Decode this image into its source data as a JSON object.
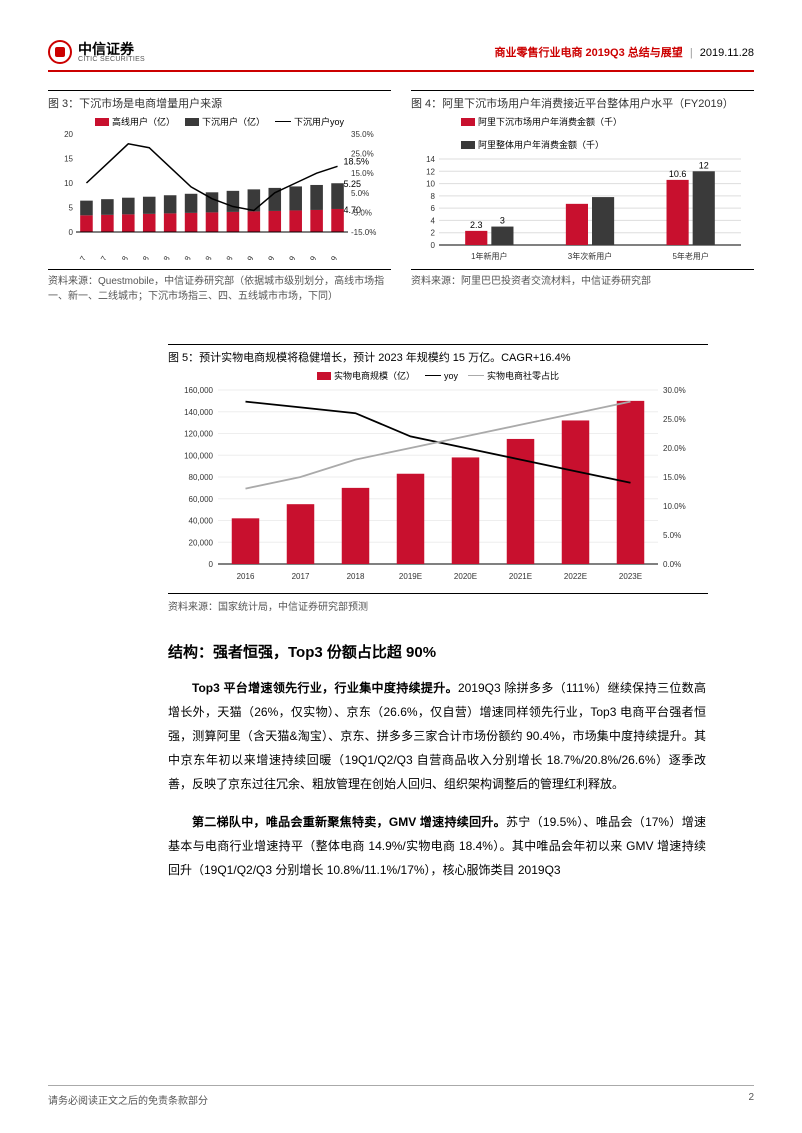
{
  "header": {
    "logo_cn": "中信证券",
    "logo_en": "CITIC SECURITIES",
    "title_red": "商业零售行业电商 2019Q3 总结与展望",
    "date": "2019.11.28"
  },
  "chart3": {
    "title": "图 3：下沉市场是电商增量用户来源",
    "type": "stacked-bar-line",
    "legend": {
      "series_a": "高线用户（亿）",
      "series_b": "下沉用户（亿）",
      "line": "下沉用户yoy"
    },
    "x_labels": [
      "Sep-17",
      "Nov-17",
      "Jan-18",
      "Mar-18",
      "May-18",
      "Jul-18",
      "Sep-18",
      "Nov-18",
      "Jan-19",
      "Mar-19",
      "May-19",
      "Jul-19",
      "Sep-19"
    ],
    "high_tier": [
      3.4,
      3.5,
      3.6,
      3.7,
      3.8,
      3.9,
      4.0,
      4.1,
      4.2,
      4.3,
      4.4,
      4.5,
      4.7
    ],
    "sink_tier": [
      3.0,
      3.2,
      3.4,
      3.5,
      3.7,
      3.9,
      4.1,
      4.3,
      4.5,
      4.7,
      4.9,
      5.1,
      5.25
    ],
    "yoy_pct": [
      10,
      20,
      30,
      28,
      18,
      8,
      2,
      -2,
      -4,
      5,
      10,
      15,
      18.5
    ],
    "y_left": {
      "min": 0,
      "max": 20,
      "step": 5
    },
    "y_right": {
      "min": -15,
      "max": 35,
      "step": 10,
      "suffix": "%"
    },
    "colors": {
      "high": "#c8102e",
      "sink": "#3a3a3a",
      "line": "#000"
    },
    "annotations": {
      "last_yoy": "18.5%",
      "last_sink": "5.25",
      "last_high": "4.70"
    },
    "source": "资料来源：Questmobile，中信证券研究部（依据城市级别划分，高线市场指一、新一、二线城市；下沉市场指三、四、五线城市市场，下同）"
  },
  "chart4": {
    "title": "图 4：阿里下沉市场用户年消费接近平台整体用户水平（FY2019）",
    "type": "grouped-bar",
    "legend": {
      "series_a": "阿里下沉市场用户年消费金额（千）",
      "series_b": "阿里整体用户年消费金额（千）"
    },
    "categories": [
      "1年新用户",
      "3年次新用户",
      "5年老用户"
    ],
    "sink_values": [
      2.3,
      6.7,
      10.6
    ],
    "total_values": [
      3.0,
      7.8,
      12.0
    ],
    "labels": {
      "c0a": "2.3",
      "c0b": "3",
      "c2a": "10.6",
      "c2b": "12"
    },
    "y": {
      "min": 0,
      "max": 14,
      "step": 2
    },
    "colors": {
      "sink": "#c8102e",
      "total": "#3a3a3a"
    },
    "source": "资料来源：阿里巴巴投资者交流材料，中信证券研究部"
  },
  "chart5": {
    "title": "图 5：预计实物电商规模将稳健增长，预计 2023 年规模约 15 万亿。CAGR+16.4%",
    "type": "bar-two-lines",
    "legend": {
      "bar": "实物电商规模（亿）",
      "line1": "yoy",
      "line2": "实物电商社零占比"
    },
    "x_labels": [
      "2016",
      "2017",
      "2018",
      "2019E",
      "2020E",
      "2021E",
      "2022E",
      "2023E"
    ],
    "scale_values": [
      42000,
      55000,
      70000,
      83000,
      98000,
      115000,
      132000,
      150000
    ],
    "yoy_pct": [
      28,
      27,
      26,
      22,
      20,
      18,
      16,
      14
    ],
    "share_pct": [
      13,
      15,
      18,
      20,
      22,
      24,
      26,
      28
    ],
    "y_left": {
      "min": 0,
      "max": 160000,
      "step": 20000
    },
    "y_right": {
      "min": 0,
      "max": 30,
      "step": 5,
      "suffix": "%"
    },
    "colors": {
      "bar": "#c8102e",
      "yoy": "#000",
      "share": "#aaa"
    },
    "source": "资料来源：国家统计局，中信证券研究部预测"
  },
  "section": {
    "heading": "结构：强者恒强，Top3 份额占比超 90%"
  },
  "para1": {
    "lead": "Top3 平台增速领先行业，行业集中度持续提升。",
    "body": "2019Q3 除拼多多（111%）继续保持三位数高增长外，天猫（26%，仅实物）、京东（26.6%，仅自营）增速同样领先行业，Top3 电商平台强者恒强，测算阿里（含天猫&淘宝）、京东、拼多多三家合计市场份额约 90.4%，市场集中度持续提升。其中京东年初以来增速持续回暖（19Q1/Q2/Q3 自营商品收入分别增长 18.7%/20.8%/26.6%）逐季改善，反映了京东过往冗余、粗放管理在创始人回归、组织架构调整后的管理红利释放。"
  },
  "para2": {
    "lead": "第二梯队中，唯品会重新聚焦特卖，GMV 增速持续回升。",
    "body": "苏宁（19.5%）、唯品会（17%）增速基本与电商行业增速持平（整体电商 14.9%/实物电商 18.4%）。其中唯品会年初以来 GMV 增速持续回升（19Q1/Q2/Q3 分别增长 10.8%/11.1%/17%），核心服饰类目 2019Q3"
  },
  "footer": {
    "disclaimer": "请务必阅读正文之后的免责条款部分",
    "page": "2"
  }
}
